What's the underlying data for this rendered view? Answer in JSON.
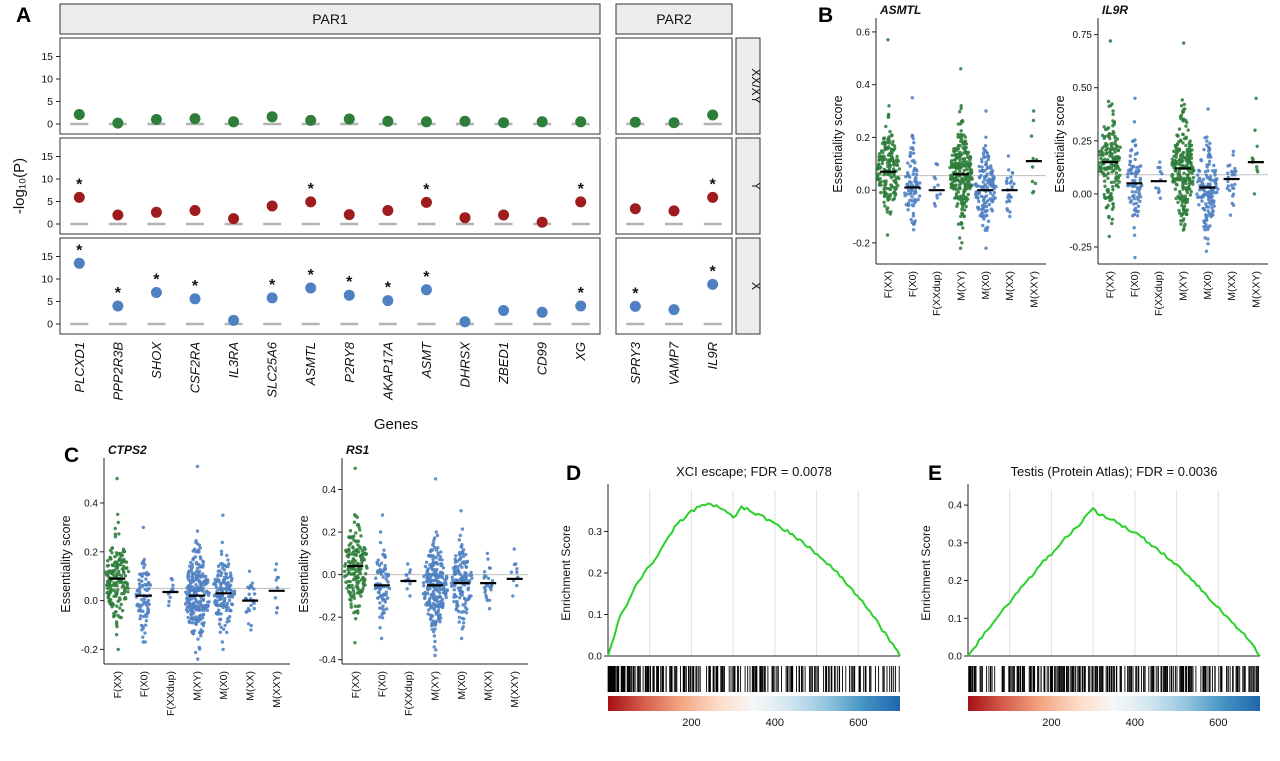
{
  "figure": {
    "panel_a_label": "A",
    "panel_b_label": "B",
    "panel_c_label": "C",
    "panel_d_label": "D",
    "panel_e_label": "E"
  },
  "colors": {
    "green": "#2e7d3a",
    "blue": "#4f81c2",
    "dark_red": "#9e1b1e",
    "gsea_green": "#2bd12b",
    "strip_bg": "#ececec",
    "ref_line": "#bdbdbd",
    "zero_dash": "#b3b3b3",
    "grid_line": "#e0e0e0",
    "axis": "#222222",
    "gradient": [
      "#a50f15",
      "#d6604d",
      "#f4a582",
      "#fddbc7",
      "#f7f7f7",
      "#d1e5f0",
      "#92c5de",
      "#4393c3",
      "#2166ac"
    ]
  },
  "chart_data": [
    {
      "id": "A",
      "type": "facet-dot",
      "xlabel": "Genes",
      "ylabel": "-log₁₀(P)",
      "ylim": [
        0,
        16
      ],
      "yticks": [
        0,
        5,
        10,
        15
      ],
      "facet_cols": [
        {
          "label": "PAR1",
          "genes": [
            "PLCXD1",
            "PPP2R3B",
            "SHOX",
            "CSF2RA",
            "IL3RA",
            "SLC25A6",
            "ASMTL",
            "P2RY8",
            "AKAP17A",
            "ASMT",
            "DHRSX",
            "ZBED1",
            "CD99",
            "XG"
          ]
        },
        {
          "label": "PAR2",
          "genes": [
            "SPRY3",
            "VAMP7",
            "IL9R"
          ]
        }
      ],
      "facet_rows": [
        {
          "label": "XX/XY",
          "color_key": "green",
          "values": [
            2.1,
            0.2,
            1.0,
            1.2,
            0.5,
            1.6,
            0.8,
            1.1,
            0.6,
            0.5,
            0.6,
            0.3,
            0.5,
            0.5,
            0.4,
            0.3,
            2.0
          ],
          "significant": []
        },
        {
          "label": "Y",
          "color_key": "dark_red",
          "values": [
            5.9,
            2.0,
            2.6,
            3.0,
            1.2,
            4.0,
            4.9,
            2.1,
            3.0,
            4.8,
            1.4,
            2.0,
            0.4,
            4.9,
            3.4,
            2.9,
            5.9
          ],
          "significant": [
            0,
            6,
            9,
            13,
            16
          ]
        },
        {
          "label": "X",
          "color_key": "blue",
          "values": [
            13.5,
            4.0,
            7.0,
            5.6,
            0.8,
            5.8,
            8.0,
            6.4,
            5.2,
            7.6,
            0.5,
            3.0,
            2.6,
            4.0,
            3.9,
            3.2,
            8.8
          ],
          "significant": [
            0,
            1,
            2,
            3,
            5,
            6,
            7,
            8,
            9,
            13,
            14,
            16
          ]
        }
      ]
    },
    {
      "id": "B",
      "type": "beeswarm",
      "subplots": [
        {
          "title": "ASMTL",
          "ylabel": "Essentiality score",
          "ylim": [
            -0.28,
            0.63
          ],
          "yticks": [
            -0.2,
            0.0,
            0.2,
            0.4,
            0.6
          ],
          "ytick_labels": [
            "-0.2",
            "0.0",
            "0.2",
            "0.4",
            "0.6"
          ],
          "ref_line": 0.055,
          "groups": [
            {
              "label": "F(XX)",
              "color_key": "green",
              "n": 170,
              "median": 0.07,
              "sd": 0.075,
              "min": -0.17,
              "max": 0.57
            },
            {
              "label": "F(X0)",
              "color_key": "blue",
              "n": 85,
              "median": 0.01,
              "sd": 0.07,
              "min": -0.15,
              "max": 0.35
            },
            {
              "label": "F(XXdup)",
              "color_key": "blue",
              "n": 11,
              "median": 0.0,
              "sd": 0.04,
              "min": -0.06,
              "max": 0.1
            },
            {
              "label": "M(XY)",
              "color_key": "green",
              "n": 240,
              "median": 0.06,
              "sd": 0.085,
              "min": -0.22,
              "max": 0.46
            },
            {
              "label": "M(X0)",
              "color_key": "blue",
              "n": 140,
              "median": 0.0,
              "sd": 0.07,
              "min": -0.22,
              "max": 0.3
            },
            {
              "label": "M(XX)",
              "color_key": "blue",
              "n": 26,
              "median": 0.0,
              "sd": 0.05,
              "min": -0.1,
              "max": 0.13
            },
            {
              "label": "M(XXY)",
              "color_key": "green",
              "n": 10,
              "median": 0.11,
              "sd": 0.07,
              "min": -0.01,
              "max": 0.3
            }
          ]
        },
        {
          "title": "IL9R",
          "ylabel": "Essentiality score",
          "ylim": [
            -0.33,
            0.8
          ],
          "yticks": [
            -0.25,
            0.0,
            0.25,
            0.5,
            0.75
          ],
          "ytick_labels": [
            "-0.25",
            "0.00",
            "0.25",
            "0.50",
            "0.75"
          ],
          "ref_line": 0.09,
          "groups": [
            {
              "label": "F(XX)",
              "color_key": "green",
              "n": 170,
              "median": 0.15,
              "sd": 0.12,
              "min": -0.2,
              "max": 0.72
            },
            {
              "label": "F(X0)",
              "color_key": "blue",
              "n": 85,
              "median": 0.05,
              "sd": 0.1,
              "min": -0.3,
              "max": 0.45
            },
            {
              "label": "F(XXdup)",
              "color_key": "blue",
              "n": 11,
              "median": 0.06,
              "sd": 0.05,
              "min": -0.02,
              "max": 0.15
            },
            {
              "label": "M(XY)",
              "color_key": "green",
              "n": 240,
              "median": 0.12,
              "sd": 0.115,
              "min": -0.17,
              "max": 0.71
            },
            {
              "label": "M(X0)",
              "color_key": "blue",
              "n": 140,
              "median": 0.03,
              "sd": 0.1,
              "min": -0.27,
              "max": 0.4
            },
            {
              "label": "M(XX)",
              "color_key": "blue",
              "n": 26,
              "median": 0.07,
              "sd": 0.07,
              "min": -0.1,
              "max": 0.2
            },
            {
              "label": "M(XXY)",
              "color_key": "green",
              "n": 10,
              "median": 0.15,
              "sd": 0.08,
              "min": 0.0,
              "max": 0.45
            }
          ]
        }
      ]
    },
    {
      "id": "C",
      "type": "beeswarm",
      "subplots": [
        {
          "title": "CTPS2",
          "ylabel": "Essentiality score",
          "ylim": [
            -0.26,
            0.56
          ],
          "yticks": [
            -0.2,
            0.0,
            0.2,
            0.4
          ],
          "ytick_labels": [
            "-0.2",
            "0.0",
            "0.2",
            "0.4"
          ],
          "ref_line": 0.05,
          "groups": [
            {
              "label": "F(XX)",
              "color_key": "green",
              "n": 170,
              "median": 0.09,
              "sd": 0.085,
              "min": -0.2,
              "max": 0.5
            },
            {
              "label": "F(X0)",
              "color_key": "blue",
              "n": 85,
              "median": 0.02,
              "sd": 0.07,
              "min": -0.17,
              "max": 0.3
            },
            {
              "label": "F(XXdup)",
              "color_key": "blue",
              "n": 11,
              "median": 0.035,
              "sd": 0.03,
              "min": -0.02,
              "max": 0.09
            },
            {
              "label": "M(XY)",
              "color_key": "blue",
              "n": 240,
              "median": 0.02,
              "sd": 0.095,
              "min": -0.24,
              "max": 0.55
            },
            {
              "label": "M(X0)",
              "color_key": "blue",
              "n": 140,
              "median": 0.03,
              "sd": 0.08,
              "min": -0.2,
              "max": 0.35
            },
            {
              "label": "M(XX)",
              "color_key": "blue",
              "n": 26,
              "median": 0.0,
              "sd": 0.06,
              "min": -0.12,
              "max": 0.12
            },
            {
              "label": "M(XXY)",
              "color_key": "blue",
              "n": 10,
              "median": 0.04,
              "sd": 0.05,
              "min": -0.05,
              "max": 0.15
            }
          ]
        },
        {
          "title": "RS1",
          "ylabel": "Essentiality score",
          "ylim": [
            -0.42,
            0.52
          ],
          "yticks": [
            -0.4,
            -0.2,
            0.0,
            0.2,
            0.4
          ],
          "ytick_labels": [
            "-0.4",
            "-0.2",
            "0.0",
            "0.2",
            "0.4"
          ],
          "ref_line": 0.0,
          "groups": [
            {
              "label": "F(XX)",
              "color_key": "green",
              "n": 170,
              "median": 0.04,
              "sd": 0.1,
              "min": -0.32,
              "max": 0.5
            },
            {
              "label": "F(X0)",
              "color_key": "blue",
              "n": 85,
              "median": -0.05,
              "sd": 0.09,
              "min": -0.3,
              "max": 0.28
            },
            {
              "label": "F(XXdup)",
              "color_key": "blue",
              "n": 11,
              "median": -0.03,
              "sd": 0.04,
              "min": -0.1,
              "max": 0.05
            },
            {
              "label": "M(XY)",
              "color_key": "blue",
              "n": 240,
              "median": -0.05,
              "sd": 0.1,
              "min": -0.38,
              "max": 0.45
            },
            {
              "label": "M(X0)",
              "color_key": "blue",
              "n": 140,
              "median": -0.04,
              "sd": 0.09,
              "min": -0.3,
              "max": 0.3
            },
            {
              "label": "M(XX)",
              "color_key": "blue",
              "n": 26,
              "median": -0.04,
              "sd": 0.06,
              "min": -0.16,
              "max": 0.1
            },
            {
              "label": "M(XXY)",
              "color_key": "blue",
              "n": 10,
              "median": -0.02,
              "sd": 0.05,
              "min": -0.1,
              "max": 0.12
            }
          ]
        }
      ]
    },
    {
      "id": "D",
      "type": "gsea",
      "title": "XCI escape; FDR = 0.0078",
      "ylabel": "Enrichment Score",
      "xlim": [
        0,
        700
      ],
      "xticks": [
        200,
        400,
        600
      ],
      "ylim": [
        0,
        0.4
      ],
      "yticks": [
        0.0,
        0.1,
        0.2,
        0.3
      ],
      "ytick_labels": [
        "0.0",
        "0.1",
        "0.2",
        "0.3"
      ],
      "curve": [
        [
          0,
          0.0
        ],
        [
          15,
          0.05
        ],
        [
          30,
          0.1
        ],
        [
          45,
          0.12
        ],
        [
          60,
          0.16
        ],
        [
          80,
          0.19
        ],
        [
          100,
          0.22
        ],
        [
          120,
          0.24
        ],
        [
          140,
          0.28
        ],
        [
          160,
          0.31
        ],
        [
          180,
          0.33
        ],
        [
          200,
          0.35
        ],
        [
          220,
          0.36
        ],
        [
          240,
          0.37
        ],
        [
          260,
          0.36
        ],
        [
          280,
          0.355
        ],
        [
          300,
          0.33
        ],
        [
          320,
          0.36
        ],
        [
          340,
          0.35
        ],
        [
          360,
          0.34
        ],
        [
          380,
          0.33
        ],
        [
          400,
          0.32
        ],
        [
          430,
          0.3
        ],
        [
          460,
          0.28
        ],
        [
          490,
          0.255
        ],
        [
          520,
          0.23
        ],
        [
          550,
          0.2
        ],
        [
          580,
          0.165
        ],
        [
          610,
          0.13
        ],
        [
          640,
          0.09
        ],
        [
          670,
          0.045
        ],
        [
          700,
          0.0
        ]
      ],
      "rug_count": 260,
      "rug_bias": 1.55
    },
    {
      "id": "E",
      "type": "gsea",
      "title": "Testis (Protein Atlas); FDR = 0.0036",
      "ylabel": "Enrichment Score",
      "xlim": [
        0,
        700
      ],
      "xticks": [
        200,
        400,
        600
      ],
      "ylim": [
        0,
        0.44
      ],
      "yticks": [
        0.0,
        0.1,
        0.2,
        0.3,
        0.4
      ],
      "ytick_labels": [
        "0.0",
        "0.1",
        "0.2",
        "0.3",
        "0.4"
      ],
      "curve": [
        [
          0,
          0.0
        ],
        [
          20,
          0.03
        ],
        [
          40,
          0.06
        ],
        [
          60,
          0.085
        ],
        [
          80,
          0.12
        ],
        [
          100,
          0.14
        ],
        [
          120,
          0.17
        ],
        [
          140,
          0.2
        ],
        [
          160,
          0.22
        ],
        [
          180,
          0.25
        ],
        [
          200,
          0.27
        ],
        [
          220,
          0.295
        ],
        [
          240,
          0.32
        ],
        [
          260,
          0.34
        ],
        [
          280,
          0.365
        ],
        [
          300,
          0.39
        ],
        [
          315,
          0.375
        ],
        [
          330,
          0.37
        ],
        [
          350,
          0.36
        ],
        [
          370,
          0.345
        ],
        [
          390,
          0.33
        ],
        [
          410,
          0.32
        ],
        [
          440,
          0.295
        ],
        [
          470,
          0.27
        ],
        [
          500,
          0.24
        ],
        [
          530,
          0.21
        ],
        [
          560,
          0.175
        ],
        [
          590,
          0.14
        ],
        [
          620,
          0.105
        ],
        [
          650,
          0.07
        ],
        [
          680,
          0.035
        ],
        [
          700,
          0.0
        ]
      ],
      "rug_count": 260,
      "rug_bias": 1.1
    }
  ]
}
